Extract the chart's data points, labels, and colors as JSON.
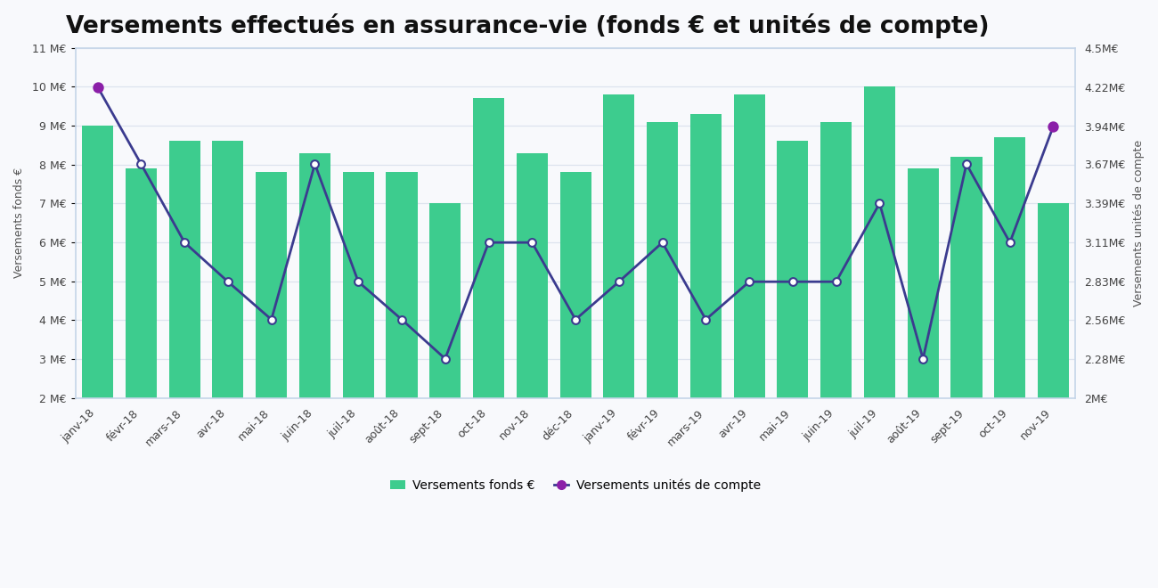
{
  "title": "Versements effectués en assurance-vie (fonds € et unités de compte)",
  "categories": [
    "janv-18",
    "févr-18",
    "mars-18",
    "avr-18",
    "mai-18",
    "juin-18",
    "juil-18",
    "août-18",
    "sept-18",
    "oct-18",
    "nov-18",
    "déc-18",
    "janv-19",
    "févr-19",
    "mars-19",
    "avr-19",
    "mai-19",
    "juin-19",
    "juil-19",
    "août-19",
    "sept-19",
    "oct-19",
    "nov-19"
  ],
  "bar_values": [
    9.0,
    7.9,
    8.6,
    8.6,
    7.8,
    8.3,
    7.8,
    7.8,
    7.0,
    9.7,
    8.3,
    7.8,
    9.8,
    9.1,
    9.3,
    9.8,
    8.6,
    9.1,
    10.0,
    7.9,
    8.2,
    8.7,
    7.0
  ],
  "line_values": [
    4.22,
    3.67,
    3.11,
    2.83,
    2.56,
    3.67,
    2.83,
    2.56,
    2.28,
    3.11,
    3.11,
    2.56,
    2.83,
    3.11,
    2.56,
    2.83,
    2.83,
    2.83,
    3.39,
    2.28,
    3.67,
    3.11,
    3.94
  ],
  "bar_color": "#3dcc8e",
  "line_color": "#3b3b8f",
  "marker_face_color": "#ffffff",
  "marker_edge_color": "#3b3b8f",
  "marker_highlight_color": "#8b1fa8",
  "ylabel_left": "Versements fonds €",
  "ylabel_right": "Versements unités de compte",
  "ylim_left": [
    2,
    11
  ],
  "ylim_right": [
    2.0,
    4.5
  ],
  "yticks_left": [
    2,
    3,
    4,
    5,
    6,
    7,
    8,
    9,
    10,
    11
  ],
  "yticks_left_labels": [
    "2 M€",
    "3 M€",
    "4 M€",
    "5 M€",
    "6 M€",
    "7 M€",
    "8 M€",
    "9 M€",
    "10 M€",
    "11 M€"
  ],
  "yticks_right": [
    2.0,
    2.28,
    2.56,
    2.83,
    3.11,
    3.39,
    3.67,
    3.94,
    4.22,
    4.5
  ],
  "yticks_right_labels": [
    "2M€",
    "2.28M€",
    "2.56M€",
    "2.83M€",
    "3.11M€",
    "3.39M€",
    "3.67M€",
    "3.94M€",
    "4.22M€",
    "4.5M€"
  ],
  "legend_bar_label": "Versements fonds €",
  "legend_line_label": "Versements unités de compte",
  "background_color": "#f8f9fc",
  "plot_bg_color": "#f8f9fc",
  "grid_color": "#dde3ee",
  "border_color": "#c5d5e8",
  "title_fontsize": 19,
  "axis_fontsize": 9,
  "tick_fontsize": 9,
  "highlight_indices": [
    0,
    22
  ]
}
